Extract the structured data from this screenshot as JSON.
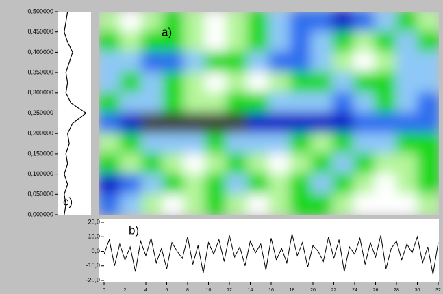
{
  "chart_data": [
    {
      "type": "profile",
      "label": "c)",
      "color": "#000000",
      "y": [
        0,
        0.025,
        0.05,
        0.075,
        0.1,
        0.125,
        0.15,
        0.175,
        0.2,
        0.225,
        0.25,
        0.275,
        0.3,
        0.325,
        0.35,
        0.375,
        0.4,
        0.425,
        0.45,
        0.475,
        0.5
      ],
      "values": [
        0.2,
        0.25,
        0.2,
        0.3,
        0.2,
        0.3,
        0.25,
        0.35,
        0.3,
        0.45,
        0.85,
        0.4,
        0.25,
        0.3,
        0.25,
        0.35,
        0.45,
        0.3,
        0.2,
        0.25,
        0.3
      ],
      "xlim": [
        0,
        1
      ],
      "ylim": [
        0,
        0.5
      ],
      "yticks": [
        {
          "value": 0,
          "label": "0,000000"
        },
        {
          "value": 0.05,
          "label": "0,050000"
        },
        {
          "value": 0.1,
          "label": "0,100000"
        },
        {
          "value": 0.15,
          "label": "0,150000"
        },
        {
          "value": 0.2,
          "label": "0,200000"
        },
        {
          "value": 0.25,
          "label": "0,250000"
        },
        {
          "value": 0.3,
          "label": "0,300000"
        },
        {
          "value": 0.35,
          "label": "0,350000"
        },
        {
          "value": 0.4,
          "label": "0,400000"
        },
        {
          "value": 0.45,
          "label": "0,450000"
        },
        {
          "value": 0.5,
          "label": "0,500000"
        }
      ]
    },
    {
      "type": "heatmap",
      "label": "a)",
      "colorscale": [
        "#3c3c3c",
        "#0a1ec8",
        "#2f6ef0",
        "#8ec8f8",
        "#18d818",
        "#b4f59a",
        "#ffffff"
      ],
      "xlim": [
        0,
        32
      ],
      "ylim": [
        0,
        0.5
      ],
      "z": [
        [
          5,
          6,
          5,
          4,
          5,
          6,
          5,
          4,
          3,
          2,
          2,
          1,
          2,
          3,
          4,
          5
        ],
        [
          4,
          5,
          4,
          4,
          5,
          6,
          5,
          4,
          3,
          2,
          3,
          4,
          5,
          4,
          3,
          4
        ],
        [
          3,
          3,
          2,
          2,
          3,
          4,
          4,
          3,
          2,
          2,
          3,
          5,
          6,
          5,
          3,
          3
        ],
        [
          3,
          4,
          3,
          4,
          5,
          6,
          5,
          6,
          5,
          4,
          4,
          3,
          4,
          4,
          3,
          3
        ],
        [
          4,
          3,
          3,
          4,
          5,
          5,
          4,
          4,
          3,
          3,
          3,
          2,
          3,
          4,
          3,
          2
        ],
        [
          2,
          1,
          0,
          0,
          0,
          0,
          0,
          1,
          1,
          1,
          1,
          1,
          2,
          2,
          2,
          2
        ],
        [
          5,
          4,
          3,
          3,
          3,
          4,
          3,
          3,
          3,
          4,
          5,
          4,
          3,
          3,
          4,
          4
        ],
        [
          4,
          5,
          4,
          5,
          6,
          5,
          4,
          5,
          6,
          5,
          4,
          3,
          4,
          5,
          5,
          4
        ],
        [
          1,
          2,
          3,
          4,
          5,
          4,
          3,
          4,
          5,
          4,
          3,
          4,
          5,
          6,
          5,
          4
        ],
        [
          2,
          3,
          5,
          6,
          5,
          4,
          5,
          6,
          5,
          4,
          4,
          5,
          6,
          6,
          6,
          5
        ]
      ]
    },
    {
      "type": "line",
      "label": "b)",
      "color": "#000000",
      "x": [
        0,
        0.5,
        1,
        1.5,
        2,
        2.5,
        3,
        3.5,
        4,
        4.5,
        5,
        5.5,
        6,
        6.5,
        7,
        7.5,
        8,
        8.5,
        9,
        9.5,
        10,
        10.5,
        11,
        11.5,
        12,
        12.5,
        13,
        13.5,
        14,
        14.5,
        15,
        15.5,
        16,
        16.5,
        17,
        17.5,
        18,
        18.5,
        19,
        19.5,
        20,
        20.5,
        21,
        21.5,
        22,
        22.5,
        23,
        23.5,
        24,
        24.5,
        25,
        25.5,
        26,
        26.5,
        27,
        27.5,
        28,
        28.5,
        29,
        29.5,
        30,
        30.5,
        31,
        31.5,
        32
      ],
      "values": [
        -2,
        8,
        -10,
        5,
        -6,
        3,
        -14,
        7,
        -3,
        9,
        -8,
        2,
        -12,
        6,
        0,
        -5,
        10,
        -9,
        4,
        -15,
        6,
        -2,
        8,
        -7,
        11,
        -4,
        3,
        -10,
        7,
        -1,
        5,
        -13,
        9,
        -6,
        2,
        -8,
        12,
        -3,
        6,
        -11,
        4,
        0,
        -7,
        10,
        -5,
        8,
        -14,
        3,
        -2,
        9,
        -9,
        6,
        -4,
        11,
        -12,
        2,
        7,
        -6,
        5,
        -1,
        10,
        -8,
        3,
        -16,
        6
      ],
      "xlim": [
        0,
        32
      ],
      "ylim": [
        -20,
        20
      ],
      "xticks": [
        0,
        2,
        4,
        6,
        8,
        10,
        12,
        14,
        16,
        18,
        20,
        22,
        24,
        26,
        28,
        30,
        32
      ],
      "yticks": [
        {
          "value": -20,
          "label": "-20,0"
        },
        {
          "value": -10,
          "label": "-10,0"
        },
        {
          "value": 0,
          "label": "0,0"
        },
        {
          "value": 10,
          "label": "10,0"
        },
        {
          "value": 20,
          "label": "20,0"
        }
      ]
    }
  ]
}
